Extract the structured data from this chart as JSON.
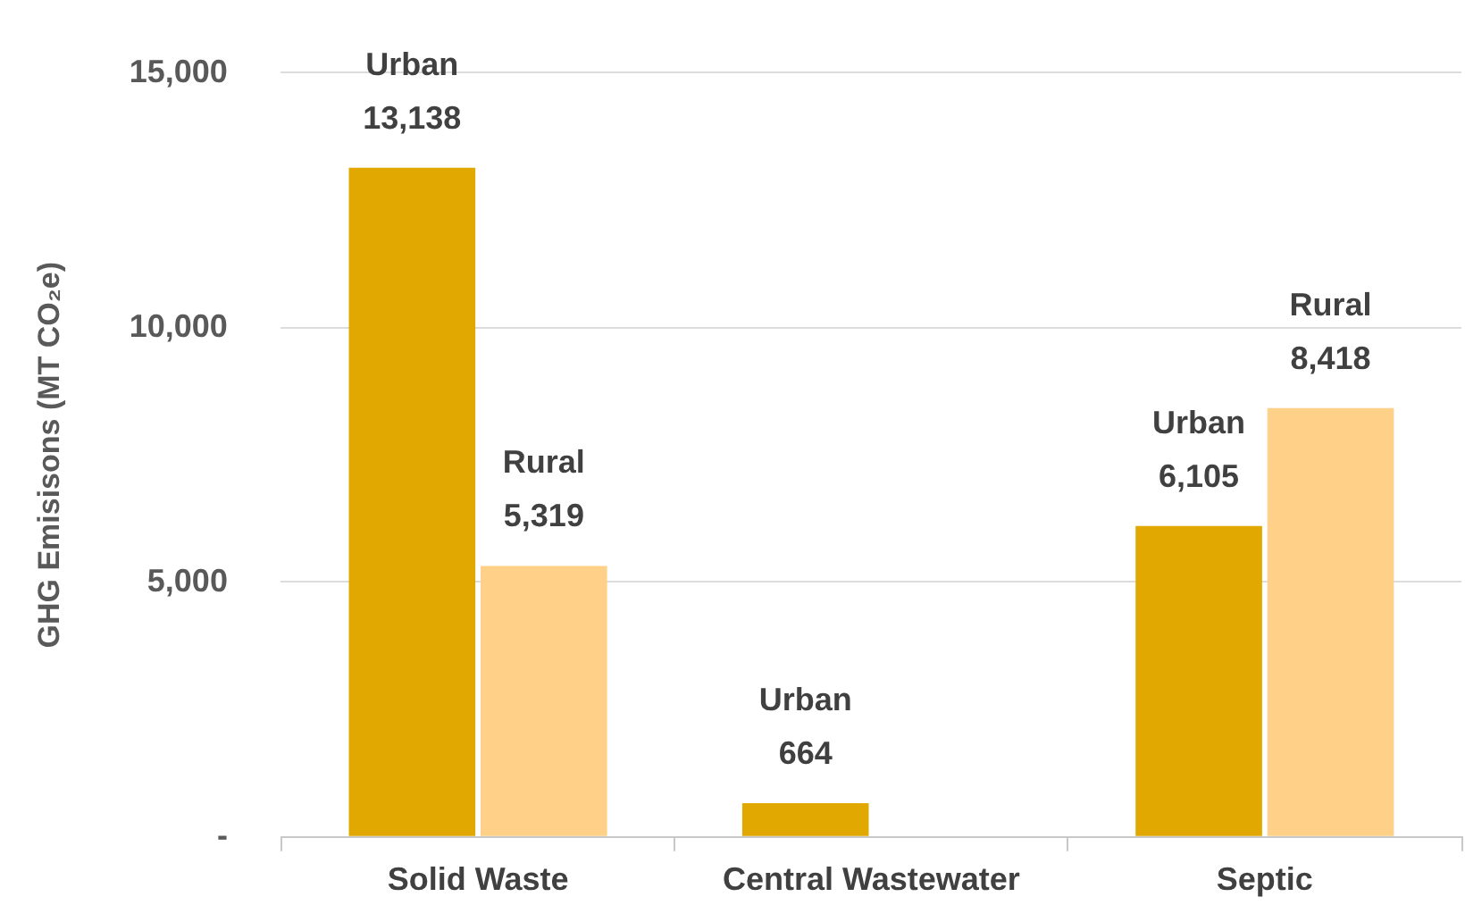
{
  "chart_data": {
    "type": "bar",
    "ylabel": "GHG Emisisons (MT CO₂e)",
    "categories": [
      "Solid Waste",
      "Central Wastewater",
      "Septic"
    ],
    "series": [
      {
        "name": "Urban",
        "color": "#e0a800",
        "values": [
          13138,
          664,
          6105
        ],
        "value_labels": [
          "13,138",
          "664",
          "6,105"
        ]
      },
      {
        "name": "Rural",
        "color": "#ffd088",
        "values": [
          5319,
          null,
          8418
        ],
        "value_labels": [
          "5,319",
          null,
          "8,418"
        ]
      }
    ],
    "ylim": [
      0,
      15000
    ],
    "yticks": [
      {
        "value": 0,
        "label": "-"
      },
      {
        "value": 5000,
        "label": "5,000"
      },
      {
        "value": 10000,
        "label": "10,000"
      },
      {
        "value": 15000,
        "label": "15,000"
      }
    ],
    "grid": "y"
  }
}
